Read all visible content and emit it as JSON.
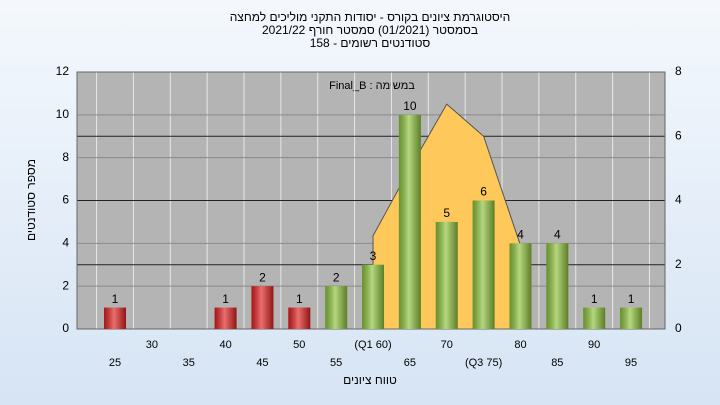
{
  "chart_data": {
    "type": "bar",
    "title": "היסטוגרמת ציונים בקורס - יסודות התקני מוליכים למחצה",
    "subtitle": "בסמסטר  (01/2021)  סמסטר חורף 2021/22",
    "subtitle2": "סטודנטים רשומים - 158",
    "annotation": "במשימה : Final_B",
    "xlabel": "טווח ציונים",
    "ylabel": "מספר סטודנטים",
    "categories": [
      "25",
      "30",
      "35",
      "40",
      "45",
      "50",
      "55",
      "(Q1 60)",
      "65",
      "70",
      "(Q3 75)",
      "80",
      "85",
      "90",
      "95"
    ],
    "values": [
      1,
      0,
      0,
      1,
      2,
      1,
      2,
      3,
      10,
      5,
      6,
      4,
      4,
      1,
      1
    ],
    "colors": [
      "#e02020",
      "#e02020",
      "#e02020",
      "#e02020",
      "#e02020",
      "#e02020",
      "#8cc23c",
      "#8cc23c",
      "#8cc23c",
      "#8cc23c",
      "#8cc23c",
      "#8cc23c",
      "#8cc23c",
      "#8cc23c",
      "#8cc23c"
    ],
    "area": {
      "color": "#ffc85a",
      "axis": "y2",
      "values": [
        null,
        null,
        null,
        null,
        null,
        null,
        null,
        2.9,
        5,
        7,
        6,
        2.6,
        null,
        null,
        null
      ]
    },
    "ylim": [
      0,
      12
    ],
    "yticks": [
      0,
      2,
      4,
      6,
      8,
      10,
      12
    ],
    "y2lim": [
      0,
      8
    ],
    "y2ticks": [
      0,
      2,
      4,
      6,
      8
    ],
    "grid": true
  }
}
